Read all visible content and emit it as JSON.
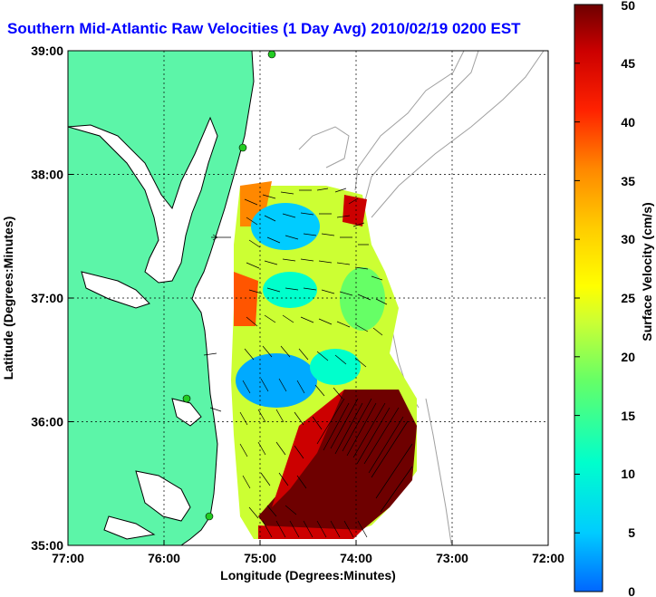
{
  "map": {
    "title": "Southern Mid-Atlantic Raw Velocities (1 Day Avg) 2010/02/19 0200 EST",
    "xlabel": "Longitude (Degrees:Minutes)",
    "ylabel": "Latitude (Degrees:Minutes)",
    "x_ticks": [
      "77:00",
      "76:00",
      "75:00",
      "74:00",
      "73:00",
      "72:00"
    ],
    "y_ticks": [
      "39:00",
      "38:00",
      "37:00",
      "36:00",
      "35:00"
    ],
    "xlim": [
      -77,
      -72
    ],
    "ylim": [
      35,
      39
    ],
    "grid": true,
    "land_color": "#5cf5a8",
    "coast_color": "#000000",
    "bathymetry_color": "#a0a0a0",
    "vector_color": "#000000"
  },
  "colorbar": {
    "label": "Surface Velocity (cm/s)",
    "ticks": [
      "50",
      "45",
      "40",
      "35",
      "30",
      "25",
      "20",
      "15",
      "10",
      "5",
      "0"
    ],
    "range": [
      0,
      50
    ],
    "colors": [
      "#0066ff",
      "#00ccff",
      "#00ffcc",
      "#66ff66",
      "#ccff33",
      "#ffff00",
      "#ffcc00",
      "#ff8800",
      "#ff2200",
      "#cc0000",
      "#6e0000"
    ]
  }
}
